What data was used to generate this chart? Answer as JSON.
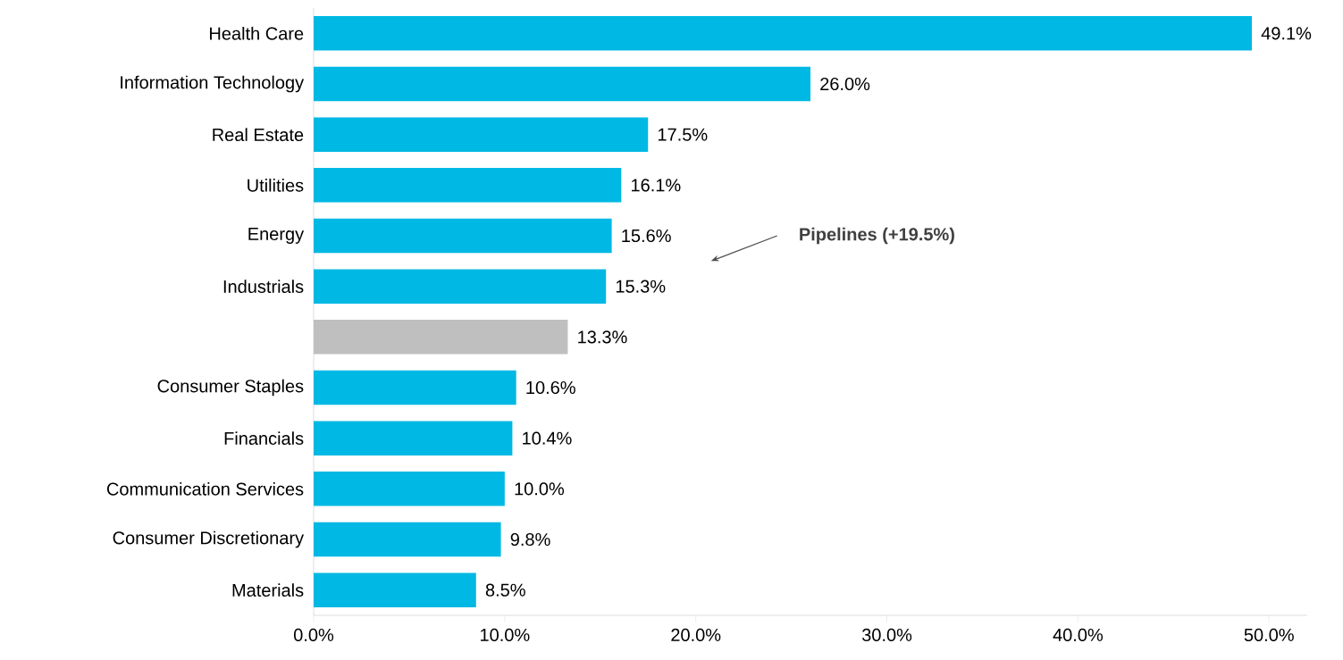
{
  "chart_data": {
    "type": "bar",
    "orientation": "horizontal",
    "categories": [
      "Health Care",
      "Information Technology",
      "Real Estate",
      "Utilities",
      "Energy",
      "Industrials",
      null,
      "Consumer Staples",
      "Financials",
      "Communication Services",
      "Consumer Discretionary",
      "Materials"
    ],
    "values": [
      49.1,
      26.0,
      17.5,
      16.1,
      15.6,
      15.3,
      13.3,
      10.6,
      10.4,
      10.0,
      9.8,
      8.5
    ],
    "value_labels": [
      "49.1%",
      "26.0%",
      "17.5%",
      "16.1%",
      "15.6%",
      "15.3%",
      "13.3%",
      "10.6%",
      "10.4%",
      "10.0%",
      "9.8%",
      "8.5%"
    ],
    "colors": [
      "#00b8e4",
      "#00b8e4",
      "#00b8e4",
      "#00b8e4",
      "#00b8e4",
      "#00b8e4",
      "#bfbfbf",
      "#00b8e4",
      "#00b8e4",
      "#00b8e4",
      "#00b8e4",
      "#00b8e4"
    ],
    "xlim": [
      0,
      52
    ],
    "xticks": [
      {
        "value": 0,
        "label": "0.0%"
      },
      {
        "value": 10,
        "label": "10.0%"
      },
      {
        "value": 20,
        "label": "20.0%"
      },
      {
        "value": 30,
        "label": "30.0%"
      },
      {
        "value": 40,
        "label": "40.0%"
      },
      {
        "value": 50,
        "label": "50.0%"
      }
    ],
    "annotations": [
      "Pipelines (+19.5%)"
    ],
    "grid": false
  }
}
